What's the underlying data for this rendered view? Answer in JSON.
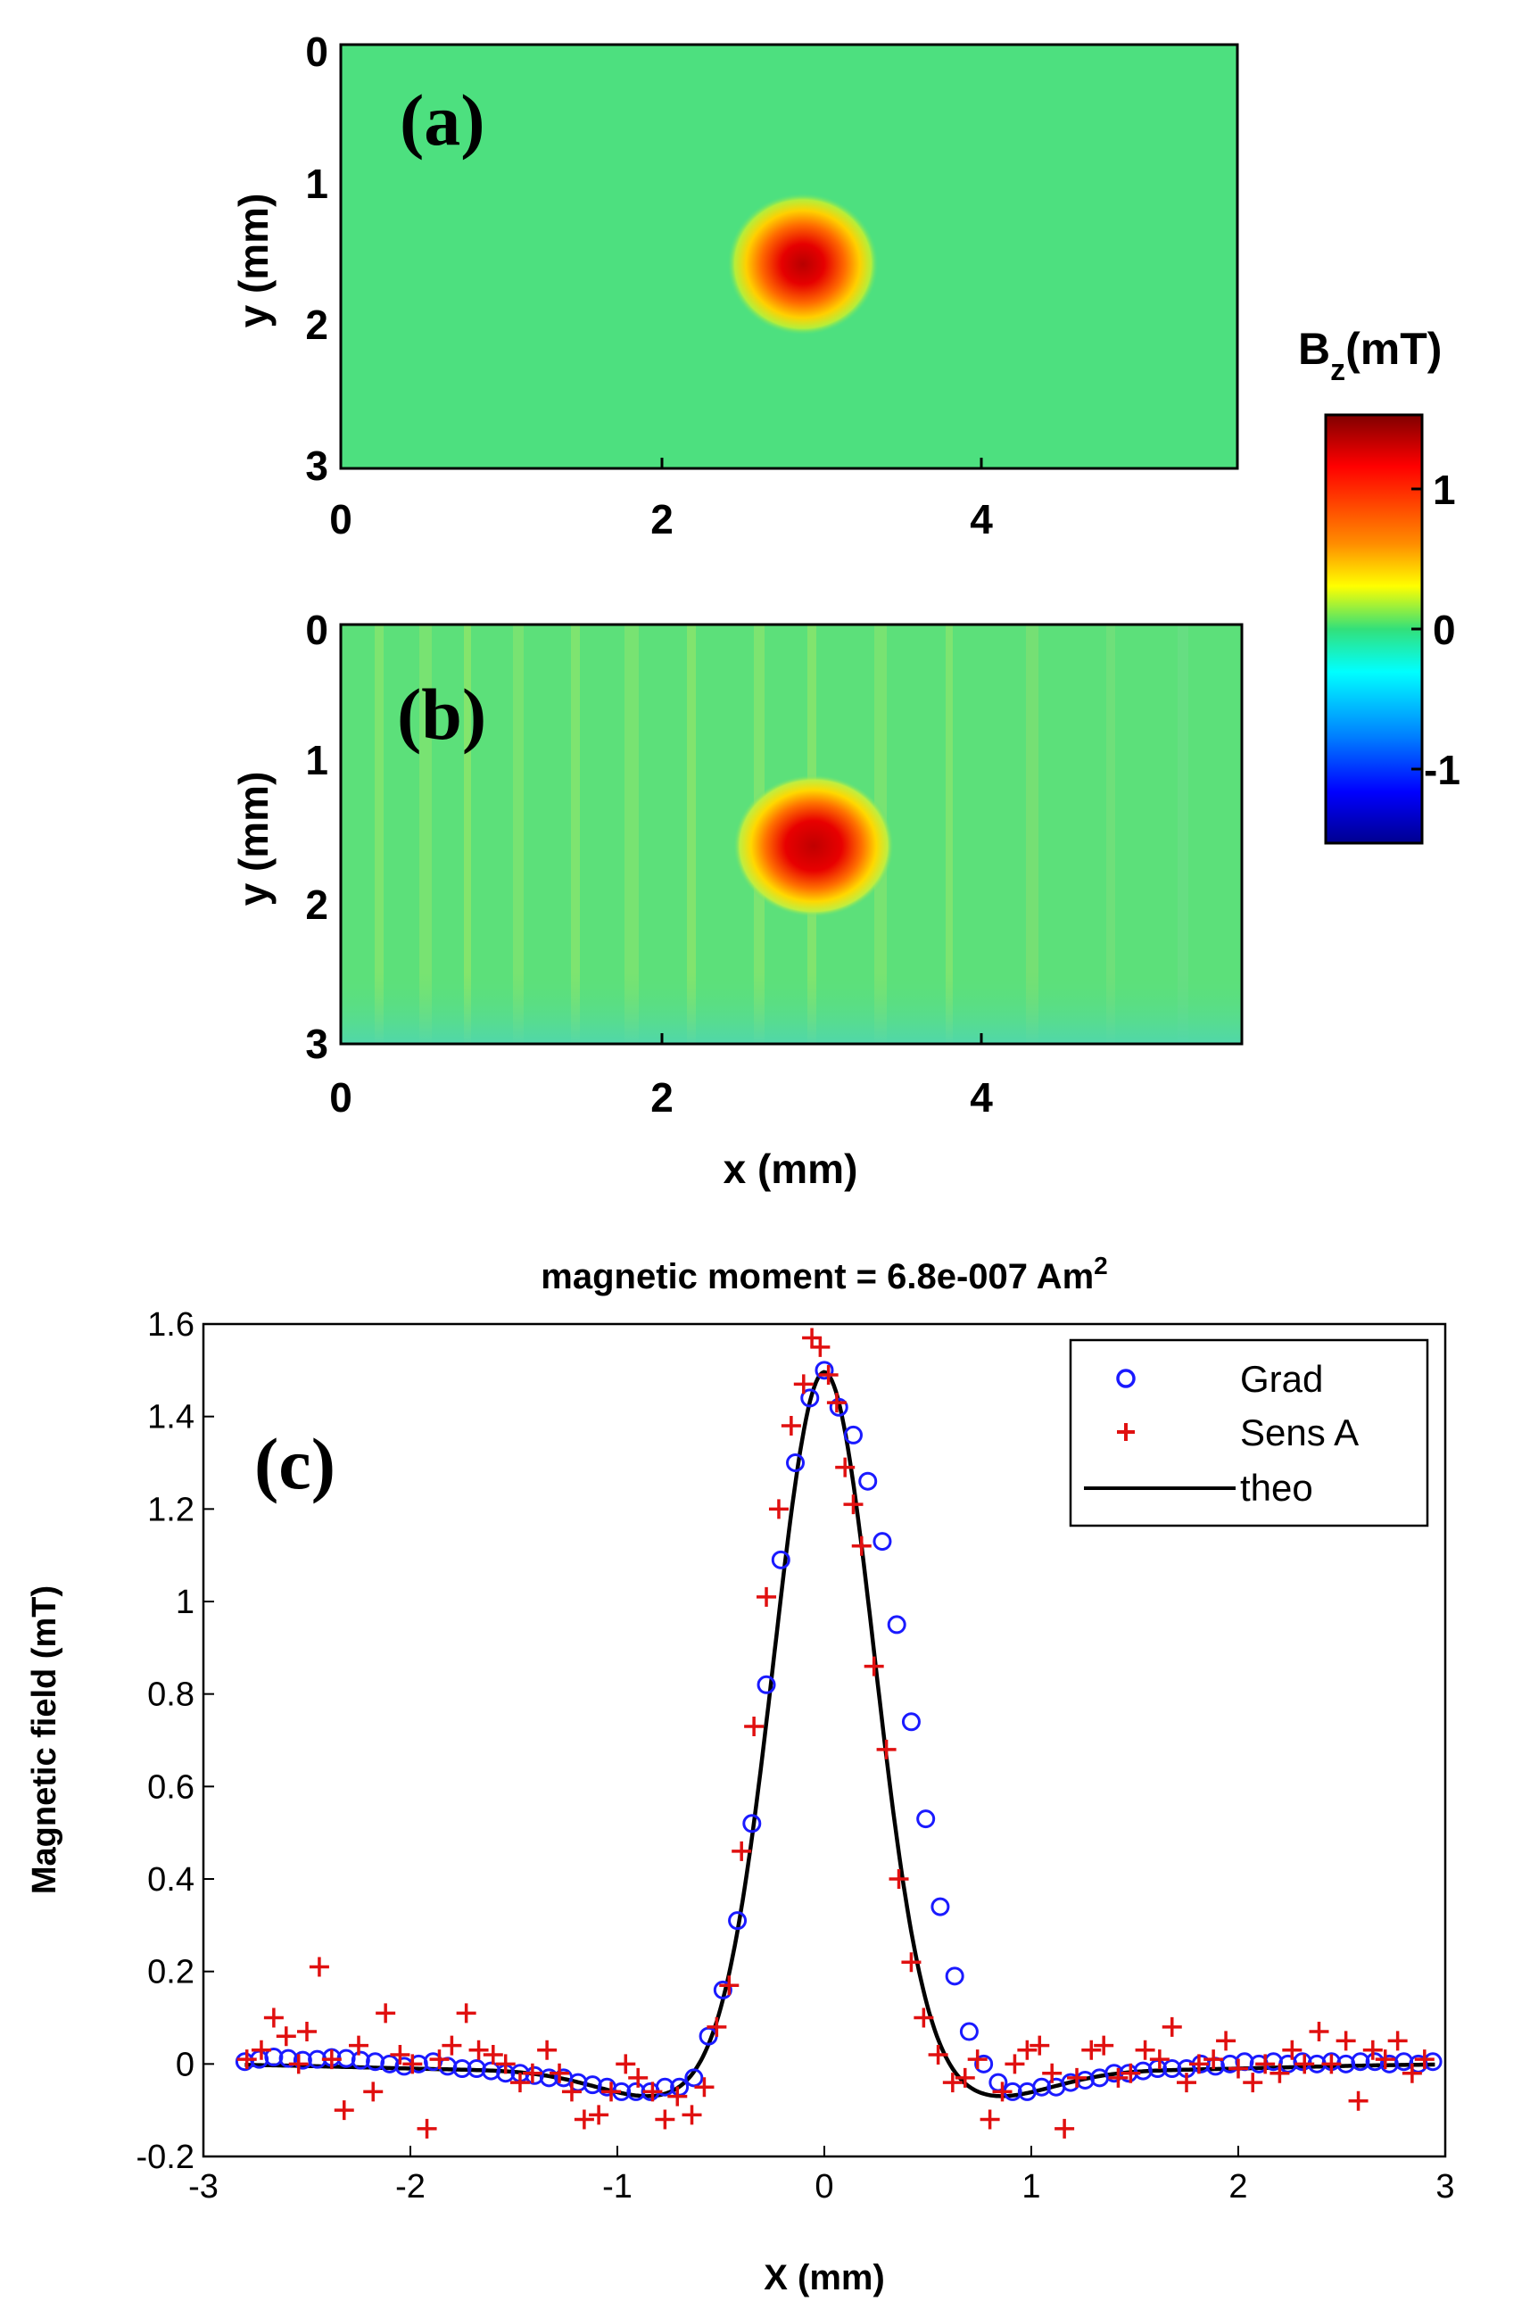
{
  "chart_data": [
    {
      "type": "heatmap",
      "panel_label": "(a)",
      "xlabel": "",
      "ylabel": "y (mm)",
      "xlim": [
        0,
        5.6
      ],
      "ylim": [
        0,
        3
      ],
      "x_ticks": [
        "0",
        "2",
        "4"
      ],
      "y_ticks": [
        "0",
        "1",
        "2",
        "3"
      ],
      "spot": {
        "x": 2.9,
        "y": 1.55,
        "peak_mT": 1.5
      },
      "background": "uniform ~0 mT"
    },
    {
      "type": "heatmap",
      "panel_label": "(b)",
      "xlabel": "x (mm)",
      "ylabel": "y (mm)",
      "xlim": [
        0,
        5.6
      ],
      "ylim": [
        0,
        3
      ],
      "x_ticks": [
        "0",
        "2",
        "4"
      ],
      "y_ticks": [
        "0",
        "1",
        "2",
        "3"
      ],
      "spot": {
        "x": 3.0,
        "y": 1.6,
        "peak_mT": 1.5
      },
      "background": "~0 mT with vertical stripe noise"
    },
    {
      "type": "line",
      "panel_label": "(c)",
      "title": "magnetic moment = 6.8e-007 Am",
      "title_sup": "2",
      "xlabel": "X (mm)",
      "ylabel": "Magnetic field (mT)",
      "xlim": [
        -3,
        3
      ],
      "ylim": [
        -0.2,
        1.6
      ],
      "x_ticks": [
        "-3",
        "-2",
        "-1",
        "0",
        "1",
        "2",
        "3"
      ],
      "y_ticks": [
        "-0.2",
        "0",
        "0.2",
        "0.4",
        "0.6",
        "0.8",
        "1",
        "1.2",
        "1.4",
        "1.6"
      ],
      "legend_position": "top-right",
      "series": [
        {
          "name": "Grad",
          "marker": "circle",
          "color": "#1a1aff",
          "points": [
            [
              -2.8,
              0.005
            ],
            [
              -2.73,
              0.01
            ],
            [
              -2.66,
              0.015
            ],
            [
              -2.59,
              0.012
            ],
            [
              -2.52,
              0.008
            ],
            [
              -2.45,
              0.01
            ],
            [
              -2.38,
              0.014
            ],
            [
              -2.31,
              0.012
            ],
            [
              -2.24,
              0.008
            ],
            [
              -2.17,
              0.005
            ],
            [
              -2.1,
              0.0
            ],
            [
              -2.03,
              -0.005
            ],
            [
              -1.96,
              0.0
            ],
            [
              -1.89,
              0.005
            ],
            [
              -1.82,
              -0.005
            ],
            [
              -1.75,
              -0.01
            ],
            [
              -1.68,
              -0.01
            ],
            [
              -1.61,
              -0.015
            ],
            [
              -1.54,
              -0.02
            ],
            [
              -1.47,
              -0.02
            ],
            [
              -1.4,
              -0.025
            ],
            [
              -1.33,
              -0.03
            ],
            [
              -1.26,
              -0.03
            ],
            [
              -1.19,
              -0.04
            ],
            [
              -1.12,
              -0.045
            ],
            [
              -1.05,
              -0.05
            ],
            [
              -0.98,
              -0.06
            ],
            [
              -0.91,
              -0.06
            ],
            [
              -0.84,
              -0.06
            ],
            [
              -0.77,
              -0.05
            ],
            [
              -0.7,
              -0.05
            ],
            [
              -0.63,
              -0.03
            ],
            [
              -0.56,
              0.06
            ],
            [
              -0.49,
              0.16
            ],
            [
              -0.42,
              0.31
            ],
            [
              -0.35,
              0.52
            ],
            [
              -0.28,
              0.82
            ],
            [
              -0.21,
              1.09
            ],
            [
              -0.14,
              1.3
            ],
            [
              -0.07,
              1.44
            ],
            [
              0.0,
              1.5
            ],
            [
              0.07,
              1.42
            ],
            [
              0.14,
              1.36
            ],
            [
              0.21,
              1.26
            ],
            [
              0.28,
              1.13
            ],
            [
              0.35,
              0.95
            ],
            [
              0.42,
              0.74
            ],
            [
              0.49,
              0.53
            ],
            [
              0.56,
              0.34
            ],
            [
              0.63,
              0.19
            ],
            [
              0.7,
              0.07
            ],
            [
              0.77,
              0.0
            ],
            [
              0.84,
              -0.04
            ],
            [
              0.91,
              -0.06
            ],
            [
              0.98,
              -0.06
            ],
            [
              1.05,
              -0.05
            ],
            [
              1.12,
              -0.05
            ],
            [
              1.19,
              -0.04
            ],
            [
              1.26,
              -0.035
            ],
            [
              1.33,
              -0.03
            ],
            [
              1.4,
              -0.02
            ],
            [
              1.47,
              -0.02
            ],
            [
              1.54,
              -0.015
            ],
            [
              1.61,
              -0.01
            ],
            [
              1.68,
              -0.01
            ],
            [
              1.75,
              -0.01
            ],
            [
              1.82,
              0.0
            ],
            [
              1.89,
              -0.005
            ],
            [
              1.96,
              0.0
            ],
            [
              2.03,
              0.005
            ],
            [
              2.1,
              0.0
            ],
            [
              2.17,
              0.005
            ],
            [
              2.24,
              0.0
            ],
            [
              2.31,
              0.005
            ],
            [
              2.38,
              0.0
            ],
            [
              2.45,
              0.005
            ],
            [
              2.52,
              0.0
            ],
            [
              2.59,
              0.005
            ],
            [
              2.66,
              0.005
            ],
            [
              2.73,
              0.0
            ],
            [
              2.8,
              0.005
            ],
            [
              2.87,
              0.0
            ],
            [
              2.94,
              0.005
            ]
          ]
        },
        {
          "name": "Sens A",
          "marker": "plus",
          "color": "#e01010",
          "points": [
            [
              -2.79,
              0.01
            ],
            [
              -2.72,
              0.03
            ],
            [
              -2.66,
              0.1
            ],
            [
              -2.6,
              0.06
            ],
            [
              -2.54,
              0.0
            ],
            [
              -2.5,
              0.07
            ],
            [
              -2.44,
              0.21
            ],
            [
              -2.38,
              0.01
            ],
            [
              -2.32,
              -0.1
            ],
            [
              -2.25,
              0.04
            ],
            [
              -2.18,
              -0.06
            ],
            [
              -2.12,
              0.11
            ],
            [
              -2.05,
              0.02
            ],
            [
              -1.99,
              0.0
            ],
            [
              -1.92,
              -0.14
            ],
            [
              -1.86,
              0.01
            ],
            [
              -1.8,
              0.04
            ],
            [
              -1.73,
              0.11
            ],
            [
              -1.67,
              0.03
            ],
            [
              -1.6,
              0.02
            ],
            [
              -1.54,
              0.0
            ],
            [
              -1.47,
              -0.04
            ],
            [
              -1.41,
              -0.02
            ],
            [
              -1.34,
              0.03
            ],
            [
              -1.28,
              -0.02
            ],
            [
              -1.22,
              -0.06
            ],
            [
              -1.16,
              -0.12
            ],
            [
              -1.09,
              -0.11
            ],
            [
              -1.03,
              -0.06
            ],
            [
              -0.96,
              0.0
            ],
            [
              -0.9,
              -0.03
            ],
            [
              -0.83,
              -0.06
            ],
            [
              -0.77,
              -0.12
            ],
            [
              -0.71,
              -0.07
            ],
            [
              -0.64,
              -0.11
            ],
            [
              -0.58,
              -0.05
            ],
            [
              -0.52,
              0.08
            ],
            [
              -0.46,
              0.17
            ],
            [
              -0.4,
              0.46
            ],
            [
              -0.34,
              0.73
            ],
            [
              -0.28,
              1.01
            ],
            [
              -0.22,
              1.2
            ],
            [
              -0.16,
              1.38
            ],
            [
              -0.1,
              1.47
            ],
            [
              -0.06,
              1.57
            ],
            [
              -0.02,
              1.55
            ],
            [
              0.02,
              1.49
            ],
            [
              0.06,
              1.43
            ],
            [
              0.1,
              1.29
            ],
            [
              0.14,
              1.21
            ],
            [
              0.18,
              1.12
            ],
            [
              0.24,
              0.86
            ],
            [
              0.3,
              0.68
            ],
            [
              0.36,
              0.4
            ],
            [
              0.42,
              0.22
            ],
            [
              0.48,
              0.1
            ],
            [
              0.55,
              0.02
            ],
            [
              0.62,
              -0.04
            ],
            [
              0.68,
              -0.03
            ],
            [
              0.74,
              0.01
            ],
            [
              0.8,
              -0.12
            ],
            [
              0.86,
              -0.06
            ],
            [
              0.92,
              0.0
            ],
            [
              0.98,
              0.03
            ],
            [
              1.04,
              0.04
            ],
            [
              1.1,
              -0.02
            ],
            [
              1.16,
              -0.14
            ],
            [
              1.22,
              -0.03
            ],
            [
              1.29,
              0.03
            ],
            [
              1.35,
              0.04
            ],
            [
              1.42,
              -0.03
            ],
            [
              1.48,
              -0.02
            ],
            [
              1.55,
              0.03
            ],
            [
              1.62,
              0.01
            ],
            [
              1.68,
              0.08
            ],
            [
              1.75,
              -0.04
            ],
            [
              1.81,
              0.0
            ],
            [
              1.88,
              0.01
            ],
            [
              1.94,
              0.05
            ],
            [
              2.0,
              -0.01
            ],
            [
              2.07,
              -0.04
            ],
            [
              2.13,
              0.0
            ],
            [
              2.2,
              -0.02
            ],
            [
              2.26,
              0.03
            ],
            [
              2.32,
              0.0
            ],
            [
              2.39,
              0.07
            ],
            [
              2.45,
              0.0
            ],
            [
              2.52,
              0.05
            ],
            [
              2.58,
              -0.08
            ],
            [
              2.65,
              0.03
            ],
            [
              2.71,
              0.01
            ],
            [
              2.77,
              0.05
            ],
            [
              2.84,
              -0.02
            ],
            [
              2.9,
              0.01
            ]
          ]
        },
        {
          "name": "theo",
          "marker": "line",
          "color": "#000000"
        }
      ]
    }
  ],
  "colorbar": {
    "title_main": "B",
    "title_sub": "z",
    "title_unit": "(mT)",
    "range": [
      -1.5,
      1.5
    ],
    "ticks": [
      "1",
      "0",
      "-1"
    ]
  }
}
